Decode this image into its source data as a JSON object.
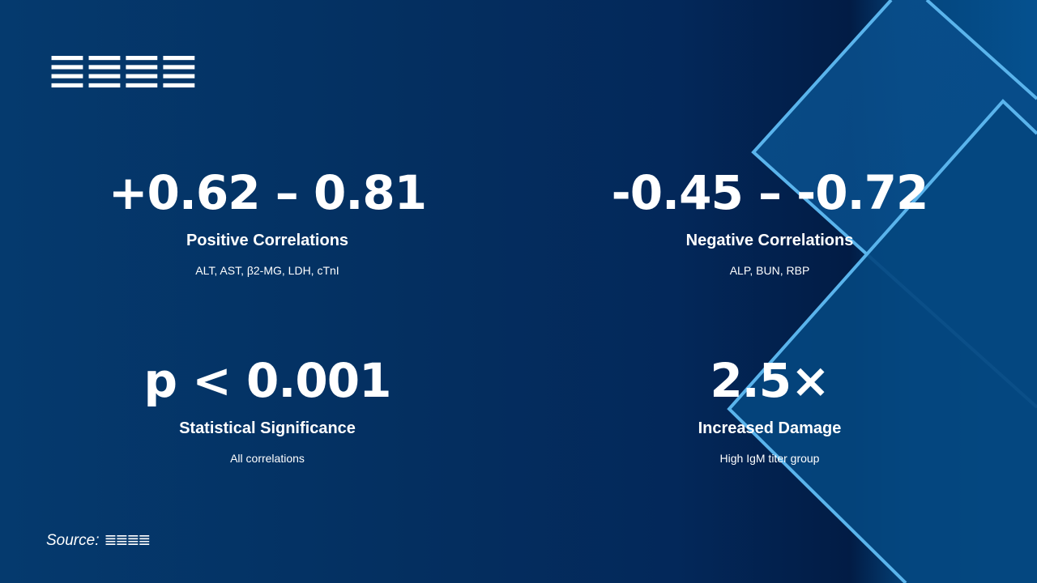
{
  "title": "≣≣≣≣",
  "stats": [
    {
      "value": "+0.62 – 0.81",
      "label": "Positive Correlations",
      "detail": "ALT, AST, β2-MG, LDH, cTnI"
    },
    {
      "value": "-0.45 – -0.72",
      "label": "Negative Correlations",
      "detail": "ALP, BUN, RBP"
    },
    {
      "value": "p < 0.001",
      "label": "Statistical Significance",
      "detail": "All correlations"
    },
    {
      "value": "2.5×",
      "label": "Increased Damage",
      "detail": "High IgM titer group"
    }
  ],
  "source": {
    "label": "Source:",
    "value": "≣≣≣≣"
  },
  "colors": {
    "background": "#042f60",
    "accent_line": "#5ab4ec",
    "shape_fill": "#05518f"
  }
}
